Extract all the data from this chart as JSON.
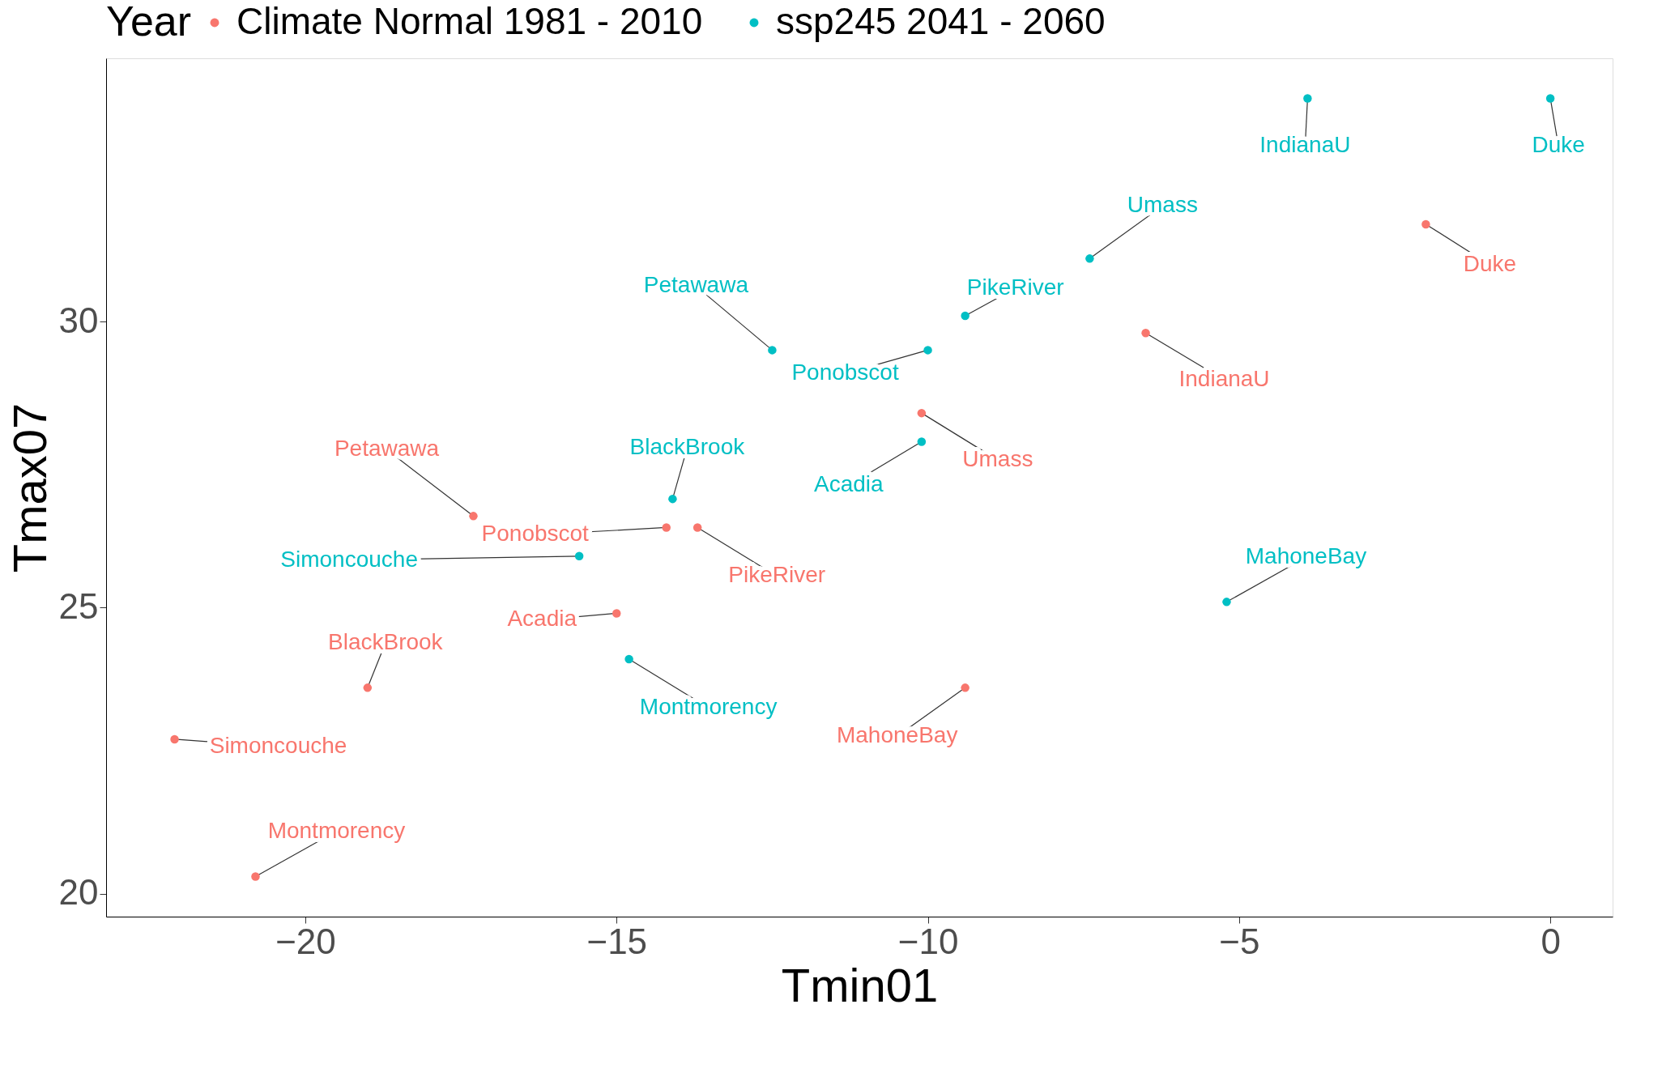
{
  "chart_data": {
    "type": "scatter",
    "xlabel": "Tmin01",
    "ylabel": "Tmax07",
    "legend_title": "Year",
    "legend": "top",
    "grid": false,
    "marker": "circle",
    "xlim": [
      -23.2,
      1.0
    ],
    "ylim": [
      19.6,
      34.6
    ],
    "xticks": [
      -20,
      -15,
      -10,
      -5,
      0
    ],
    "yticks": [
      20,
      25,
      30
    ],
    "series": [
      {
        "name": "Climate Normal 1981 - 2010",
        "color": "#f8766d",
        "x": [
          -20.8,
          -22.1,
          -19.0,
          -17.3,
          -15.0,
          -14.2,
          -13.7,
          -9.4,
          -10.1,
          -6.5,
          -2.0
        ],
        "values": [
          20.3,
          22.7,
          23.6,
          26.6,
          24.9,
          26.4,
          26.4,
          23.6,
          28.4,
          29.8,
          31.7
        ]
      },
      {
        "name": "ssp245 2041 - 2060",
        "color": "#00bfc4",
        "x": [
          -14.8,
          -15.6,
          -14.1,
          -10.1,
          -12.5,
          -10.0,
          -9.4,
          -7.4,
          -5.2,
          -3.9,
          0.0
        ],
        "values": [
          24.1,
          25.9,
          26.9,
          27.9,
          29.5,
          29.5,
          30.1,
          31.1,
          25.1,
          33.9,
          33.9
        ]
      }
    ],
    "annotations": [
      {
        "text": "Montmorency",
        "x": -20.8,
        "y": 20.3
      },
      {
        "text": "Simoncouche",
        "x": -22.1,
        "y": 22.7
      },
      {
        "text": "BlackBrook",
        "x": -19.0,
        "y": 23.6
      },
      {
        "text": "Petawawa",
        "x": -17.3,
        "y": 26.6
      },
      {
        "text": "Acadia",
        "x": -15.0,
        "y": 24.9
      },
      {
        "text": "Ponobscot",
        "x": -14.2,
        "y": 26.4
      },
      {
        "text": "PikeRiver",
        "x": -13.7,
        "y": 26.4
      },
      {
        "text": "MahoneBay",
        "x": -9.4,
        "y": 23.6
      },
      {
        "text": "Umass",
        "x": -10.1,
        "y": 28.4
      },
      {
        "text": "IndianaU",
        "x": -6.5,
        "y": 29.8
      },
      {
        "text": "Duke",
        "x": -2.0,
        "y": 31.7
      },
      {
        "text": "Montmorency",
        "x": -14.8,
        "y": 24.1
      },
      {
        "text": "Simoncouche",
        "x": -15.6,
        "y": 25.9
      },
      {
        "text": "BlackBrook",
        "x": -14.1,
        "y": 26.9
      },
      {
        "text": "Acadia",
        "x": -10.1,
        "y": 27.9
      },
      {
        "text": "Petawawa",
        "x": -12.5,
        "y": 29.5
      },
      {
        "text": "Ponobscot",
        "x": -10.0,
        "y": 29.5
      },
      {
        "text": "PikeRiver",
        "x": -9.4,
        "y": 30.1
      },
      {
        "text": "Umass",
        "x": -7.4,
        "y": 31.1
      },
      {
        "text": "MahoneBay",
        "x": -5.2,
        "y": 25.1
      },
      {
        "text": "IndianaU",
        "x": -3.9,
        "y": 33.9
      },
      {
        "text": "Duke",
        "x": 0.0,
        "y": 33.9
      }
    ]
  }
}
